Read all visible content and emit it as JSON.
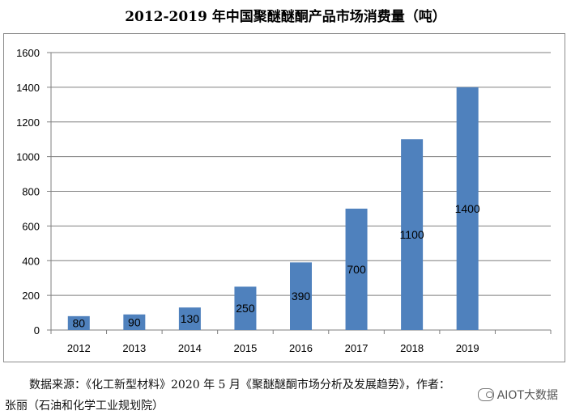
{
  "title": "2012-2019 年中国聚醚醚酮产品市场消费量（吨）",
  "source": {
    "line1": "数据来源：《化工新型材料》2020 年 5 月《聚醚醚酮市场分析及发展趋势》，作者：",
    "line2": "张丽（石油和化学工业规划院）"
  },
  "watermark": {
    "text": "AIOT大数据",
    "icon": "wechat-icon"
  },
  "colors": {
    "bar": "#4f81bd",
    "grid": "#7f7f7f",
    "axis": "#7f7f7f"
  },
  "chart_data": {
    "type": "bar",
    "categories": [
      "2012",
      "2013",
      "2014",
      "2015",
      "2016",
      "2017",
      "2018",
      "2019"
    ],
    "values": [
      80,
      90,
      130,
      250,
      390,
      700,
      1100,
      1400
    ],
    "data_labels": [
      "80",
      "90",
      "130",
      "250",
      "390",
      "700",
      "1100",
      "1400"
    ],
    "y_ticks": [
      "0",
      "200",
      "400",
      "600",
      "800",
      "1000",
      "1200",
      "1400",
      "1600"
    ],
    "ylim": [
      0,
      1600
    ],
    "grid": true,
    "legend": "none"
  }
}
